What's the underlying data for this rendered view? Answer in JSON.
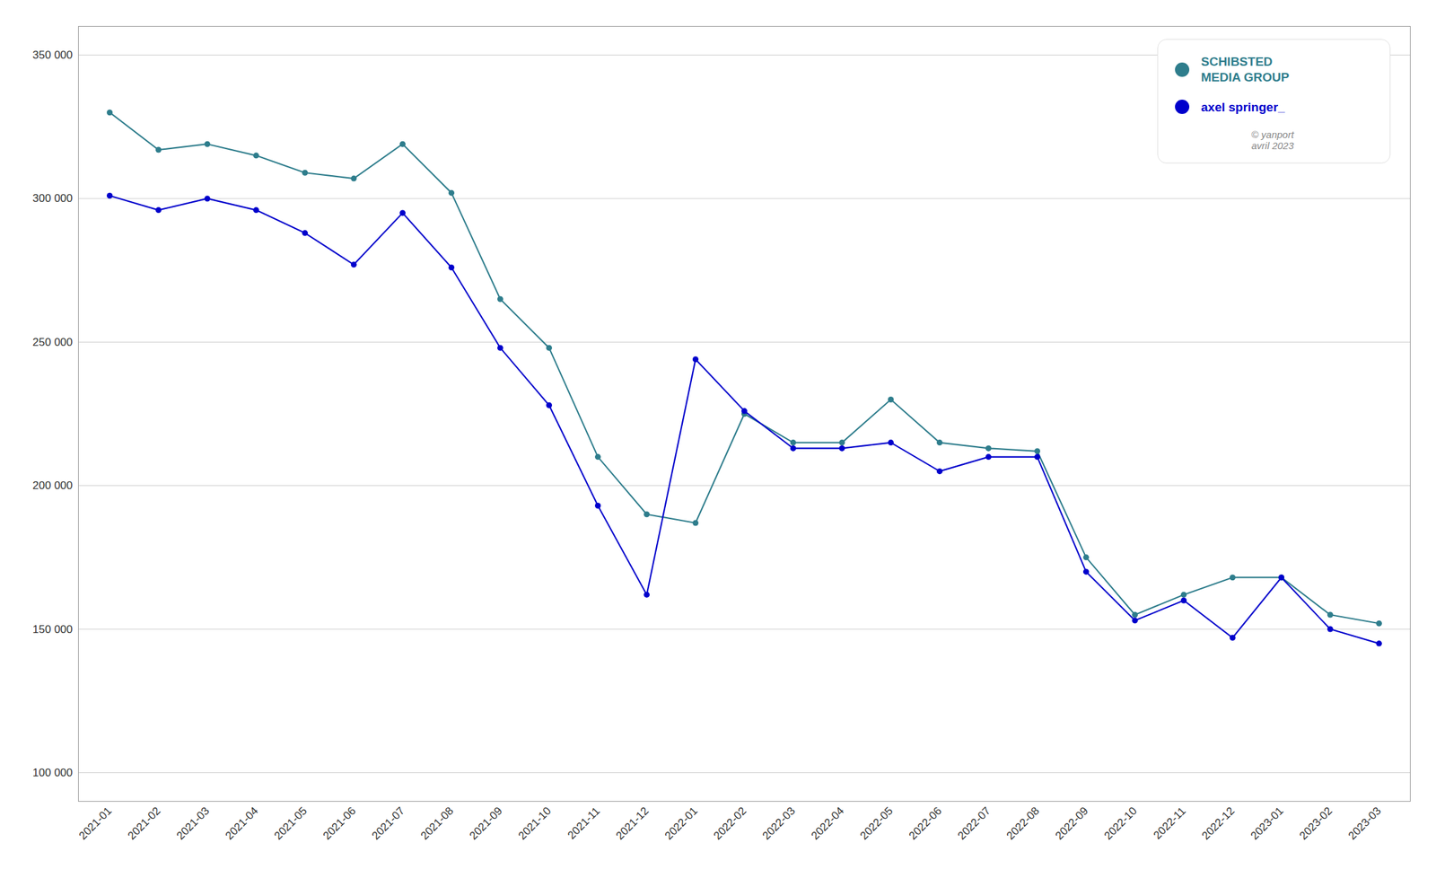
{
  "chart_data": {
    "type": "line",
    "categories": [
      "2021-01",
      "2021-02",
      "2021-03",
      "2021-04",
      "2021-05",
      "2021-06",
      "2021-07",
      "2021-08",
      "2021-09",
      "2021-10",
      "2021-11",
      "2021-12",
      "2022-01",
      "2022-02",
      "2022-03",
      "2022-04",
      "2022-05",
      "2022-06",
      "2022-07",
      "2022-08",
      "2022-09",
      "2022-10",
      "2022-11",
      "2022-12",
      "2023-01",
      "2023-02",
      "2023-03"
    ],
    "series": [
      {
        "name": "SCHIBSTED\nMEDIA GROUP",
        "color": "#2e7d8c",
        "marker": "circle",
        "values": [
          330000,
          317000,
          319000,
          315000,
          309000,
          307000,
          319000,
          302000,
          265000,
          248000,
          210000,
          190000,
          187000,
          225000,
          215000,
          215000,
          230000,
          215000,
          213000,
          212000,
          175000,
          155000,
          162000,
          168000,
          168000,
          155000,
          152000
        ]
      },
      {
        "name": "axel springer_",
        "color": "#0000cc",
        "marker": "circle",
        "values": [
          301000,
          296000,
          300000,
          296000,
          288000,
          277000,
          295000,
          276000,
          248000,
          228000,
          193000,
          162000,
          244000,
          226000,
          213000,
          213000,
          215000,
          205000,
          210000,
          210000,
          170000,
          153000,
          160000,
          147000,
          168000,
          150000,
          145000
        ]
      }
    ],
    "ylim": [
      90000,
      360000
    ],
    "yticks": [
      {
        "value": 100000,
        "label": "100 000"
      },
      {
        "value": 150000,
        "label": "150 000"
      },
      {
        "value": 200000,
        "label": "200 000"
      },
      {
        "value": 250000,
        "label": "250 000"
      },
      {
        "value": 300000,
        "label": "300 000"
      },
      {
        "value": 350000,
        "label": "350 000"
      }
    ],
    "grid": true,
    "legend": "upper right",
    "annotations": [
      "© yanport\navril 2023"
    ]
  }
}
